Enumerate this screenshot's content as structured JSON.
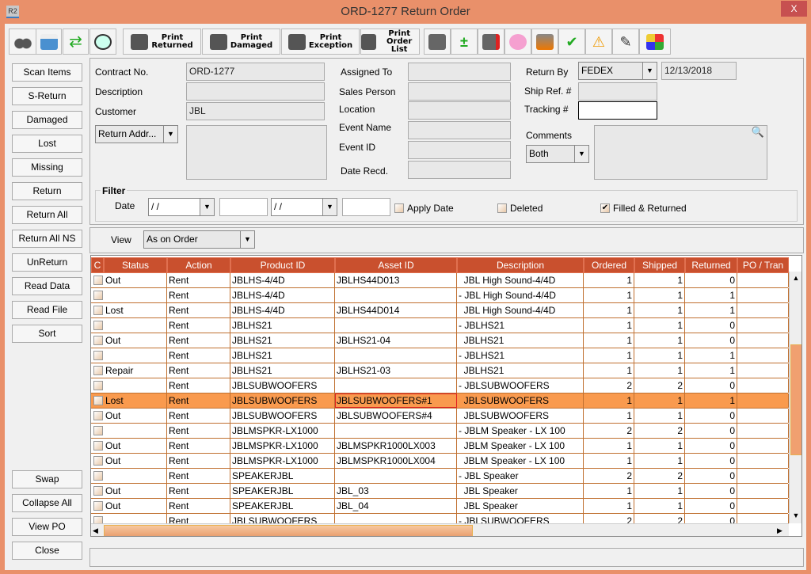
{
  "window": {
    "title": "ORD-1277 Return Order",
    "app_icon": "R2",
    "close": "X"
  },
  "toolbar": {
    "print_returned": [
      "Print",
      "Returned"
    ],
    "print_damaged": [
      "Print",
      "Damaged"
    ],
    "print_exception": [
      "Print",
      "Exception"
    ],
    "print_order_list": [
      "Print",
      "Order List"
    ]
  },
  "sidebar": {
    "top": [
      "Scan Items",
      "S-Return",
      "Damaged",
      "Lost",
      "Missing",
      "Return",
      "Return All",
      "Return All NS",
      "UnReturn",
      "Read Data",
      "Read File",
      "Sort"
    ],
    "bottom": [
      "Swap",
      "Collapse All",
      "View PO",
      "Close"
    ]
  },
  "form": {
    "contract_label": "Contract No.",
    "contract": "ORD-1277",
    "description_label": "Description",
    "description": "",
    "customer_label": "Customer",
    "customer": "JBL",
    "return_addr": "Return Addr...",
    "assigned_label": "Assigned To",
    "sales_label": "Sales Person",
    "location_label": "Location",
    "event_name_label": "Event Name",
    "event_id_label": "Event ID",
    "date_recd_label": "Date Recd.",
    "return_by_label": "Return By",
    "return_by": "FEDEX",
    "return_date": "12/13/2018",
    "ship_ref_label": "Ship Ref. #",
    "tracking_label": "Tracking #",
    "comments_label": "Comments",
    "comments_filter": "Both"
  },
  "filter": {
    "title": "Filter",
    "date_label": "Date",
    "date_from": " / /",
    "date_to": " / /",
    "apply_date": "Apply Date",
    "apply_date_checked": false,
    "deleted": "Deleted",
    "deleted_checked": false,
    "filled_returned": "Filled & Returned",
    "filled_returned_checked": true
  },
  "view": {
    "label": "View",
    "value": "As on Order"
  },
  "table": {
    "columns": [
      "C",
      "Status",
      "Action",
      "Product ID",
      "Asset ID",
      "Description",
      "Ordered",
      "Shipped",
      "Returned",
      "PO / Tran"
    ],
    "selected_row": 8,
    "rows": [
      [
        "Out",
        "Rent",
        "JBLHS-4/4D",
        "JBLHS44D013",
        "  JBL High Sound-4/4D",
        "1",
        "1",
        "0"
      ],
      [
        "",
        "Rent",
        "JBLHS-4/4D",
        "",
        "- JBL High Sound-4/4D",
        "1",
        "1",
        "1"
      ],
      [
        "Lost",
        "Rent",
        "JBLHS-4/4D",
        "JBLHS44D014",
        "  JBL High Sound-4/4D",
        "1",
        "1",
        "1"
      ],
      [
        "",
        "Rent",
        "JBLHS21",
        "",
        "- JBLHS21",
        "1",
        "1",
        "0"
      ],
      [
        "Out",
        "Rent",
        "JBLHS21",
        "JBLHS21-04",
        "  JBLHS21",
        "1",
        "1",
        "0"
      ],
      [
        "",
        "Rent",
        "JBLHS21",
        "",
        "- JBLHS21",
        "1",
        "1",
        "1"
      ],
      [
        "Repair",
        "Rent",
        "JBLHS21",
        "JBLHS21-03",
        "  JBLHS21",
        "1",
        "1",
        "1"
      ],
      [
        "",
        "Rent",
        "JBLSUBWOOFERS",
        "",
        "- JBLSUBWOOFERS",
        "2",
        "2",
        "0"
      ],
      [
        "Lost",
        "Rent",
        "JBLSUBWOOFERS",
        "JBLSUBWOOFERS#1",
        "  JBLSUBWOOFERS",
        "1",
        "1",
        "1"
      ],
      [
        "Out",
        "Rent",
        "JBLSUBWOOFERS",
        "JBLSUBWOOFERS#4",
        "  JBLSUBWOOFERS",
        "1",
        "1",
        "0"
      ],
      [
        "",
        "Rent",
        "JBLMSPKR-LX1000",
        "",
        "- JBLM Speaker - LX 100",
        "2",
        "2",
        "0"
      ],
      [
        "Out",
        "Rent",
        "JBLMSPKR-LX1000",
        "JBLMSPKR1000LX003",
        "  JBLM Speaker - LX 100",
        "1",
        "1",
        "0"
      ],
      [
        "Out",
        "Rent",
        "JBLMSPKR-LX1000",
        "JBLMSPKR1000LX004",
        "  JBLM Speaker - LX 100",
        "1",
        "1",
        "0"
      ],
      [
        "",
        "Rent",
        "SPEAKERJBL",
        "",
        "- JBL Speaker",
        "2",
        "2",
        "0"
      ],
      [
        "Out",
        "Rent",
        "SPEAKERJBL",
        "JBL_03",
        "  JBL Speaker",
        "1",
        "1",
        "0"
      ],
      [
        "Out",
        "Rent",
        "SPEAKERJBL",
        "JBL_04",
        "  JBL Speaker",
        "1",
        "1",
        "0"
      ],
      [
        "",
        "Rent",
        "JBLSUBWOOFERS",
        "",
        "- JBLSUBWOOFERS",
        "2",
        "2",
        "0"
      ]
    ]
  },
  "status_bar": ""
}
